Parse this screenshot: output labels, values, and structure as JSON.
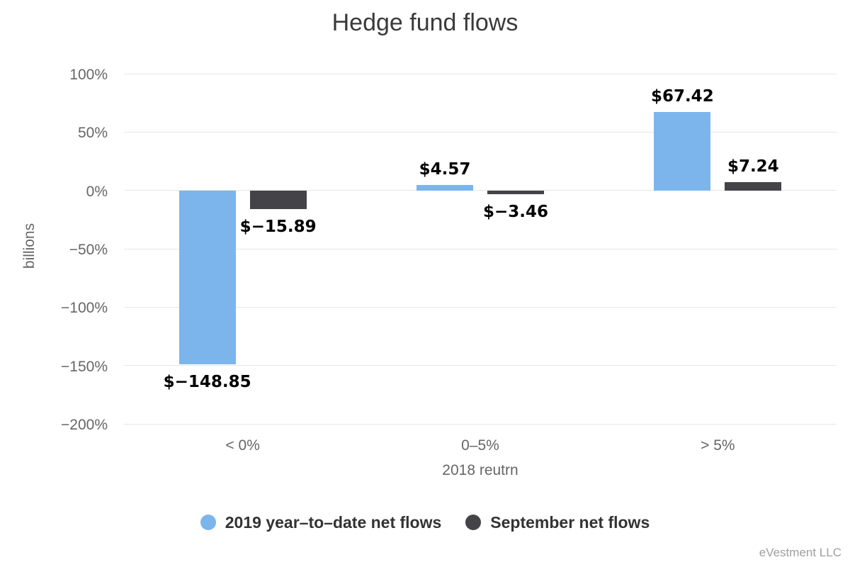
{
  "title": "Hedge fund flows",
  "attribution": "eVestment LLC",
  "colors": {
    "series_blue": "#7cb5ec",
    "series_dark": "#434348",
    "gridline": "#e6e6e6",
    "title_text": "#3a3a3a",
    "axis_text": "#666666",
    "data_label_text": "#000000",
    "legend_text": "#333333",
    "attribution_text": "#9e9e9e",
    "background": "#ffffff"
  },
  "chart_data": {
    "type": "bar",
    "title": "Hedge fund flows",
    "categories": [
      "< 0%",
      "0–5%",
      "> 5%"
    ],
    "xlabel": "2018 reutrn",
    "ylabel": "billions",
    "ylim": [
      -200,
      100
    ],
    "yticks": [
      100,
      50,
      0,
      -50,
      -100,
      -150,
      -200
    ],
    "ytick_labels": [
      "100%",
      "50%",
      "0%",
      "−50%",
      "−100%",
      "−150%",
      "−200%"
    ],
    "grid": true,
    "legend_position": "bottom",
    "series": [
      {
        "name": "2019 year–to–date net flows",
        "color": "#7cb5ec",
        "values": [
          -148.85,
          4.57,
          67.42
        ],
        "data_labels": [
          "$−148.85",
          "$4.57",
          "$67.42"
        ]
      },
      {
        "name": "September net flows",
        "color": "#434348",
        "values": [
          -15.89,
          -3.46,
          7.24
        ],
        "data_labels": [
          "$−15.89",
          "$−3.46",
          "$7.24"
        ]
      }
    ]
  }
}
